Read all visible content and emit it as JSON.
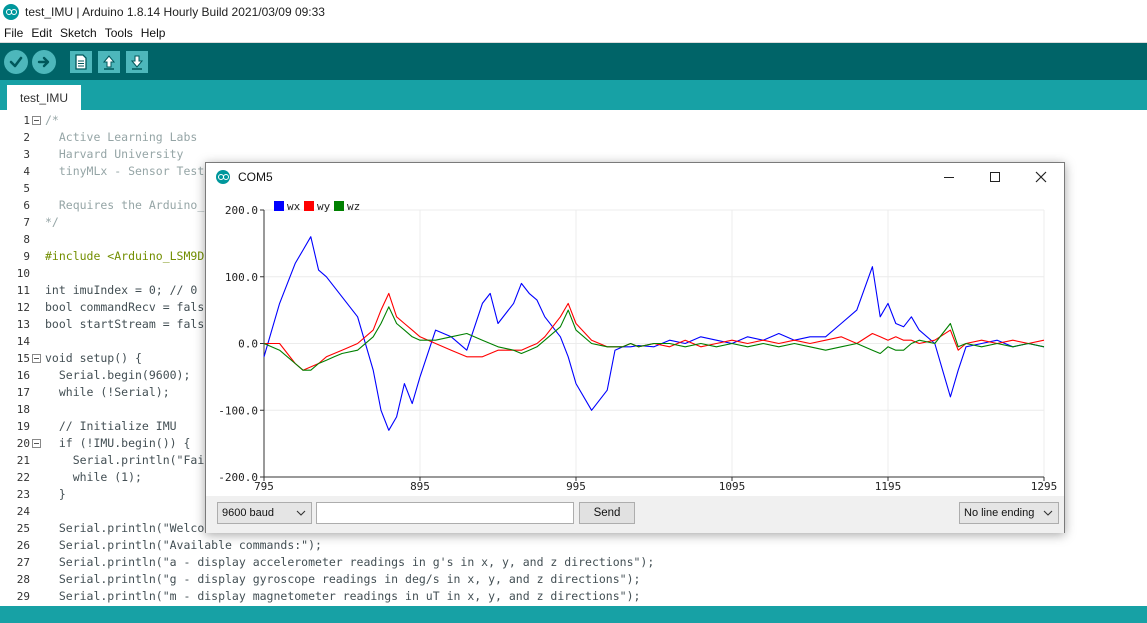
{
  "window": {
    "title": "test_IMU | Arduino 1.8.14 Hourly Build 2021/03/09 09:33"
  },
  "menu": [
    "File",
    "Edit",
    "Sketch",
    "Tools",
    "Help"
  ],
  "toolbar": {
    "verify_icon": "check-icon",
    "upload_icon": "arrow-right-icon",
    "new_icon": "new-file-icon",
    "open_icon": "arrow-up-icon",
    "save_icon": "arrow-down-icon"
  },
  "tab": {
    "label": "test_IMU"
  },
  "editor": {
    "lines": [
      {
        "n": "1",
        "fold": true,
        "text": "/*"
      },
      {
        "n": "2",
        "text": "  Active Learning Labs"
      },
      {
        "n": "3",
        "text": "  Harvard University"
      },
      {
        "n": "4",
        "text": "  tinyMLx - Sensor Test"
      },
      {
        "n": "5",
        "text": ""
      },
      {
        "n": "6",
        "text": "  Requires the Arduino_"
      },
      {
        "n": "7",
        "text": "*/"
      },
      {
        "n": "8",
        "text": ""
      },
      {
        "n": "9",
        "text": "#include <Arduino_LSM9D"
      },
      {
        "n": "10",
        "text": ""
      },
      {
        "n": "11",
        "text": "int imuIndex = 0; // 0"
      },
      {
        "n": "12",
        "text": "bool commandRecv = fals"
      },
      {
        "n": "13",
        "text": "bool startStream = fals"
      },
      {
        "n": "14",
        "text": ""
      },
      {
        "n": "15",
        "fold": true,
        "text": "void setup() {"
      },
      {
        "n": "16",
        "text": "  Serial.begin(9600);"
      },
      {
        "n": "17",
        "text": "  while (!Serial);"
      },
      {
        "n": "18",
        "text": ""
      },
      {
        "n": "19",
        "text": "  // Initialize IMU"
      },
      {
        "n": "20",
        "fold": true,
        "text": "  if (!IMU.begin()) {"
      },
      {
        "n": "21",
        "text": "    Serial.println(\"Fai"
      },
      {
        "n": "22",
        "text": "    while (1);"
      },
      {
        "n": "23",
        "text": "  }"
      },
      {
        "n": "24",
        "text": ""
      },
      {
        "n": "25",
        "text": "  Serial.println(\"Welco"
      },
      {
        "n": "26",
        "text": "  Serial.println(\"Available commands:\");"
      },
      {
        "n": "27",
        "text": "  Serial.println(\"a - display accelerometer readings in g's in x, y, and z directions\");"
      },
      {
        "n": "28",
        "text": "  Serial.println(\"g - display gyroscope readings in deg/s in x, y, and z directions\");"
      },
      {
        "n": "29",
        "text": "  Serial.println(\"m - display magnetometer readings in uT in x, y, and z directions\");"
      }
    ]
  },
  "plotter": {
    "title": "COM5",
    "baud": "9600 baud",
    "send_input_value": "",
    "send_label": "Send",
    "line_ending": "No line ending",
    "colors": {
      "wx": "#0000ff",
      "wy": "#ff0000",
      "wz": "#008000"
    }
  },
  "chart_data": {
    "type": "line",
    "title": "",
    "xlabel": "",
    "ylabel": "",
    "xlim": [
      795,
      1295
    ],
    "ylim": [
      -200,
      200
    ],
    "x_ticks": [
      795,
      895,
      995,
      1095,
      1195,
      1295
    ],
    "y_ticks": [
      "200.0",
      "100.0",
      "0.0",
      "-100.0",
      "-200.0"
    ],
    "legend_position": "top-left",
    "grid": true,
    "x": [
      795,
      805,
      815,
      820,
      825,
      830,
      835,
      840,
      845,
      855,
      865,
      870,
      875,
      880,
      885,
      890,
      895,
      905,
      915,
      925,
      935,
      940,
      945,
      955,
      960,
      965,
      970,
      975,
      985,
      990,
      995,
      1005,
      1015,
      1020,
      1025,
      1030,
      1035,
      1045,
      1055,
      1065,
      1075,
      1085,
      1095,
      1105,
      1115,
      1125,
      1135,
      1145,
      1155,
      1165,
      1175,
      1185,
      1190,
      1195,
      1200,
      1205,
      1210,
      1215,
      1225,
      1235,
      1240,
      1245,
      1255,
      1265,
      1275,
      1285,
      1295
    ],
    "series": [
      {
        "name": "wx",
        "values": [
          -20,
          60,
          120,
          140,
          160,
          110,
          100,
          85,
          70,
          40,
          -40,
          -100,
          -130,
          -110,
          -60,
          -90,
          -50,
          20,
          10,
          -10,
          60,
          75,
          30,
          60,
          90,
          75,
          65,
          40,
          10,
          -20,
          -60,
          -100,
          -70,
          -10,
          -5,
          -5,
          -3,
          -5,
          5,
          0,
          10,
          5,
          0,
          10,
          5,
          15,
          5,
          10,
          10,
          30,
          50,
          115,
          40,
          60,
          30,
          25,
          40,
          20,
          0,
          -80,
          -40,
          -5,
          0,
          5,
          -5,
          0,
          -5
        ]
      },
      {
        "name": "wy",
        "values": [
          0,
          0,
          -30,
          -40,
          -35,
          -30,
          -20,
          -15,
          -10,
          0,
          20,
          50,
          75,
          40,
          30,
          20,
          10,
          0,
          -10,
          -20,
          -20,
          -15,
          -10,
          -10,
          -10,
          -5,
          0,
          10,
          40,
          60,
          30,
          5,
          -5,
          -5,
          -5,
          0,
          -5,
          0,
          -5,
          5,
          -5,
          0,
          5,
          0,
          5,
          0,
          5,
          0,
          5,
          10,
          0,
          15,
          10,
          5,
          10,
          5,
          5,
          0,
          5,
          20,
          -10,
          0,
          5,
          0,
          5,
          0,
          5
        ]
      },
      {
        "name": "wz",
        "values": [
          0,
          -10,
          -30,
          -40,
          -40,
          -30,
          -25,
          -20,
          -15,
          -10,
          10,
          30,
          55,
          30,
          20,
          10,
          5,
          5,
          10,
          15,
          5,
          0,
          -5,
          -10,
          -15,
          -10,
          -5,
          5,
          25,
          50,
          20,
          0,
          -5,
          -5,
          -5,
          0,
          -5,
          0,
          0,
          -5,
          0,
          -5,
          0,
          -5,
          0,
          -5,
          0,
          -5,
          -10,
          -5,
          0,
          -10,
          -15,
          -5,
          -10,
          -10,
          0,
          5,
          0,
          30,
          -5,
          0,
          -5,
          0,
          -5,
          0,
          -5
        ]
      }
    ]
  }
}
